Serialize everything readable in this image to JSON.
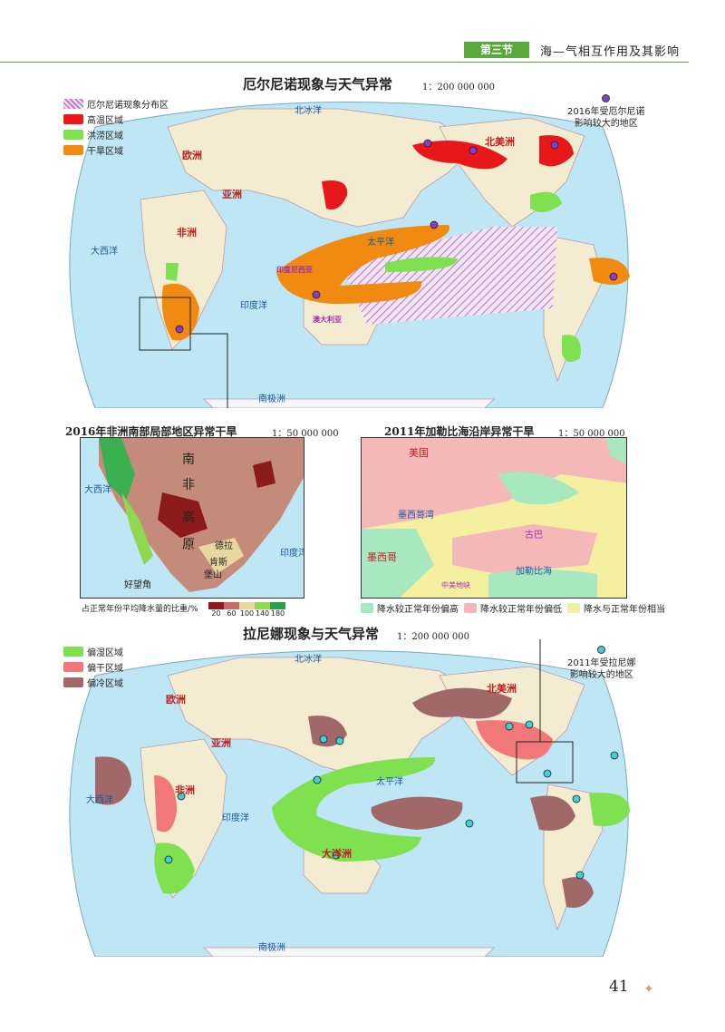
{
  "header": {
    "section": "第三节",
    "title": "海—气相互作用及其影响"
  },
  "map1": {
    "title": "厄尔尼诺现象与天气异常",
    "scale": "1：200 000 000",
    "legend": [
      {
        "label": "厄尔尼诺现象分布区",
        "color": "#c878c8"
      },
      {
        "label": "高温区域",
        "color": "#e8181a"
      },
      {
        "label": "洪涝区域",
        "color": "#7fe050"
      },
      {
        "label": "干旱区域",
        "color": "#f08a10"
      }
    ],
    "note": {
      "line1": "2016年受厄尔尼诺",
      "line2": "影响较大的地区",
      "dot_color": "#8a3cc8"
    },
    "labels": {
      "europe": "欧洲",
      "asia": "亚洲",
      "africa": "非洲",
      "north_america": "北美洲",
      "pacific": "太平洋",
      "atlantic": "大西洋",
      "indian": "印度洋",
      "antarctica": "南极洲",
      "indonesia": "印度尼西亚",
      "australia": "澳大利亚",
      "arctic": "北冰洋"
    }
  },
  "inset1": {
    "title": "2016年非洲南部局部地区异常干旱",
    "scale": "1：50 000 000",
    "labels": {
      "south": "南",
      "africa": "非",
      "high": "高",
      "plateau": "原",
      "mts1": "德拉",
      "mts2": "肯斯",
      "mts3": "堡山",
      "cape": "好望角",
      "atlantic": "大西洋",
      "indian": "印度洋"
    },
    "bar_label": "占正常年份平均降水量的比重/%",
    "bar_ticks": [
      "20",
      "60",
      "100",
      "140",
      "180"
    ],
    "bar_colors": [
      "#8b1a1a",
      "#c46a6a",
      "#e8d8a0",
      "#8fd850",
      "#2aa048"
    ]
  },
  "inset2": {
    "title": "2011年加勒比海沿岸异常干旱",
    "scale": "1：50 000 000",
    "labels": {
      "usa": "美国",
      "mexico": "墨西哥",
      "gulf": "墨西哥湾",
      "caribbean": "加勒比海",
      "cuba": "古巴",
      "central": "中美地峡"
    },
    "legend": [
      {
        "label": "降水较正常年份偏高",
        "color": "#a8e8c0"
      },
      {
        "label": "降水较正常年份偏低",
        "color": "#f4b8b8"
      },
      {
        "label": "降水与正常年份相当",
        "color": "#f4f0a0"
      }
    ]
  },
  "map2": {
    "title": "拉尼娜现象与天气异常",
    "scale": "1：200 000 000",
    "legend": [
      {
        "label": "偏湿区域",
        "color": "#7fe050"
      },
      {
        "label": "偏干区域",
        "color": "#f07878"
      },
      {
        "label": "偏冷区域",
        "color": "#a06868"
      }
    ],
    "note": {
      "line1": "2011年受拉尼娜",
      "line2": "影响较大的地区",
      "dot_color": "#40d0d8"
    },
    "labels": {
      "europe": "欧洲",
      "asia": "亚洲",
      "africa": "非洲",
      "north_america": "北美洲",
      "pacific": "太平洋",
      "atlantic": "大西洋",
      "indian": "印度洋",
      "antarctica": "南极洲",
      "australia": "大洋洲",
      "arctic": "北冰洋"
    }
  },
  "page": {
    "number": "41"
  }
}
